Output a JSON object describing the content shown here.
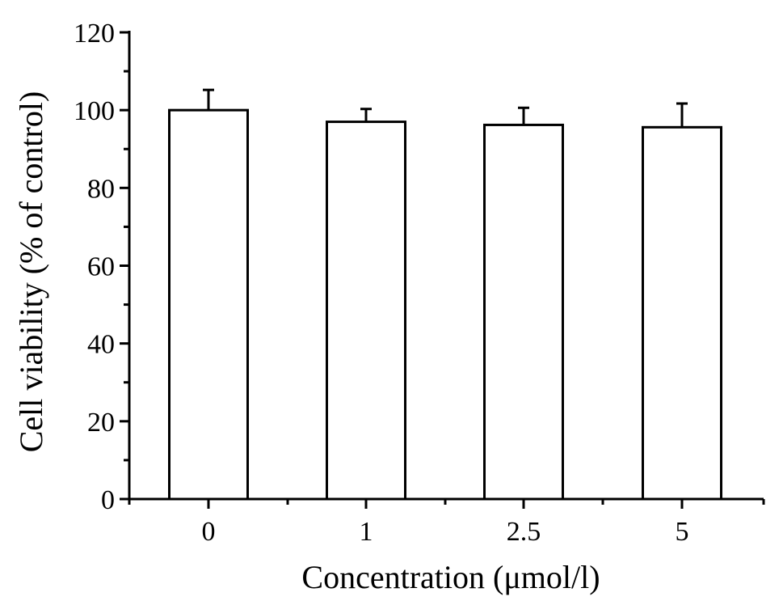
{
  "chart_data": {
    "type": "bar",
    "title": "",
    "xlabel": "Concentration (μmol/l)",
    "ylabel": "Cell viability (% of control)",
    "categories": [
      "0",
      "1",
      "2.5",
      "5"
    ],
    "values": [
      100,
      97,
      96.2,
      95.6
    ],
    "errors": [
      5.2,
      3.3,
      4.4,
      6.1
    ],
    "ylim": [
      0,
      120
    ],
    "yticks": [
      "0",
      "20",
      "40",
      "60",
      "80",
      "100",
      "120"
    ],
    "grid": false,
    "bar_fill": "#ffffff",
    "bar_stroke": "#000000"
  }
}
